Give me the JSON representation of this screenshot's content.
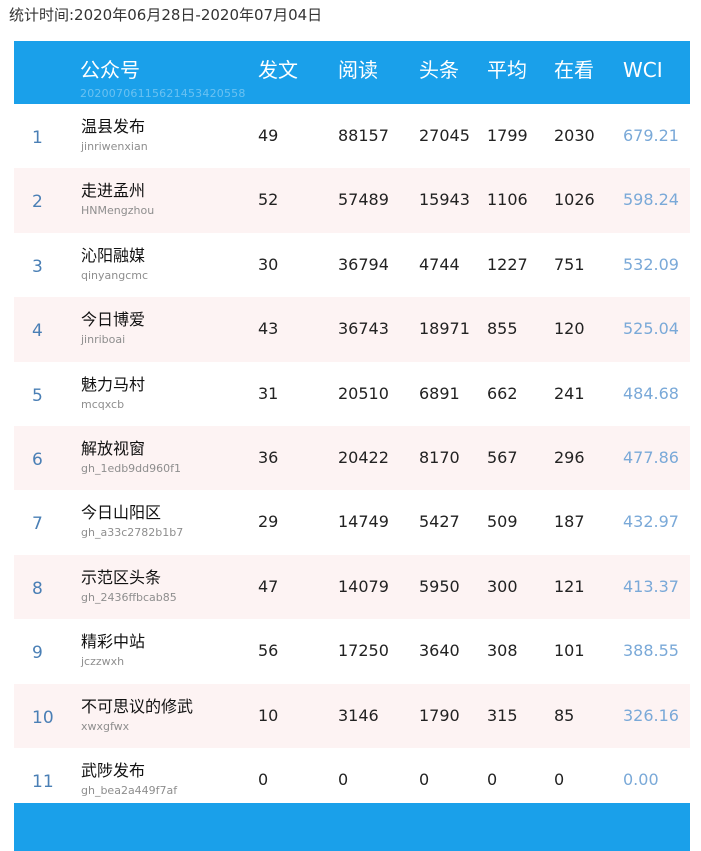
{
  "period_label": "统计时间:2020年06月28日-2020年07月04日",
  "header": {
    "account": "公众号",
    "posts": "发文",
    "reads": "阅读",
    "headline": "头条",
    "average": "平均",
    "looking": "在看",
    "wci": "WCI",
    "watermark": "20200706115621453420558"
  },
  "rows": [
    {
      "rank": "1",
      "name": "温县发布",
      "id": "jinriwenxian",
      "posts": "49",
      "reads": "88157",
      "headline": "27045",
      "average": "1799",
      "looking": "2030",
      "wci": "679.21"
    },
    {
      "rank": "2",
      "name": "走进孟州",
      "id": "HNMengzhou",
      "posts": "52",
      "reads": "57489",
      "headline": "15943",
      "average": "1106",
      "looking": "1026",
      "wci": "598.24"
    },
    {
      "rank": "3",
      "name": "沁阳融媒",
      "id": "qinyangcmc",
      "posts": "30",
      "reads": "36794",
      "headline": "4744",
      "average": "1227",
      "looking": "751",
      "wci": "532.09"
    },
    {
      "rank": "4",
      "name": "今日博爱",
      "id": "jinriboai",
      "posts": "43",
      "reads": "36743",
      "headline": "18971",
      "average": "855",
      "looking": "120",
      "wci": "525.04"
    },
    {
      "rank": "5",
      "name": "魅力马村",
      "id": "mcqxcb",
      "posts": "31",
      "reads": "20510",
      "headline": "6891",
      "average": "662",
      "looking": "241",
      "wci": "484.68"
    },
    {
      "rank": "6",
      "name": "解放视窗",
      "id": "gh_1edb9dd960f1",
      "posts": "36",
      "reads": "20422",
      "headline": "8170",
      "average": "567",
      "looking": "296",
      "wci": "477.86"
    },
    {
      "rank": "7",
      "name": "今日山阳区",
      "id": "gh_a33c2782b1b7",
      "posts": "29",
      "reads": "14749",
      "headline": "5427",
      "average": "509",
      "looking": "187",
      "wci": "432.97"
    },
    {
      "rank": "8",
      "name": "示范区头条",
      "id": "gh_2436ffbcab85",
      "posts": "47",
      "reads": "14079",
      "headline": "5950",
      "average": "300",
      "looking": "121",
      "wci": "413.37"
    },
    {
      "rank": "9",
      "name": "精彩中站",
      "id": "jczzwxh",
      "posts": "56",
      "reads": "17250",
      "headline": "3640",
      "average": "308",
      "looking": "101",
      "wci": "388.55"
    },
    {
      "rank": "10",
      "name": "不可思议的修武",
      "id": "xwxgfwx",
      "posts": "10",
      "reads": "3146",
      "headline": "1790",
      "average": "315",
      "looking": "85",
      "wci": "326.16"
    },
    {
      "rank": "11",
      "name": "武陟发布",
      "id": "gh_bea2a449f7af",
      "posts": "0",
      "reads": "0",
      "headline": "0",
      "average": "0",
      "looking": "0",
      "wci": "0.00"
    }
  ],
  "colors": {
    "header_bg": "#1aa0ea",
    "row_alt_bg": "#fdf3f3",
    "rank_color": "#4a7fb5",
    "wci_color": "#7aa9d8"
  }
}
